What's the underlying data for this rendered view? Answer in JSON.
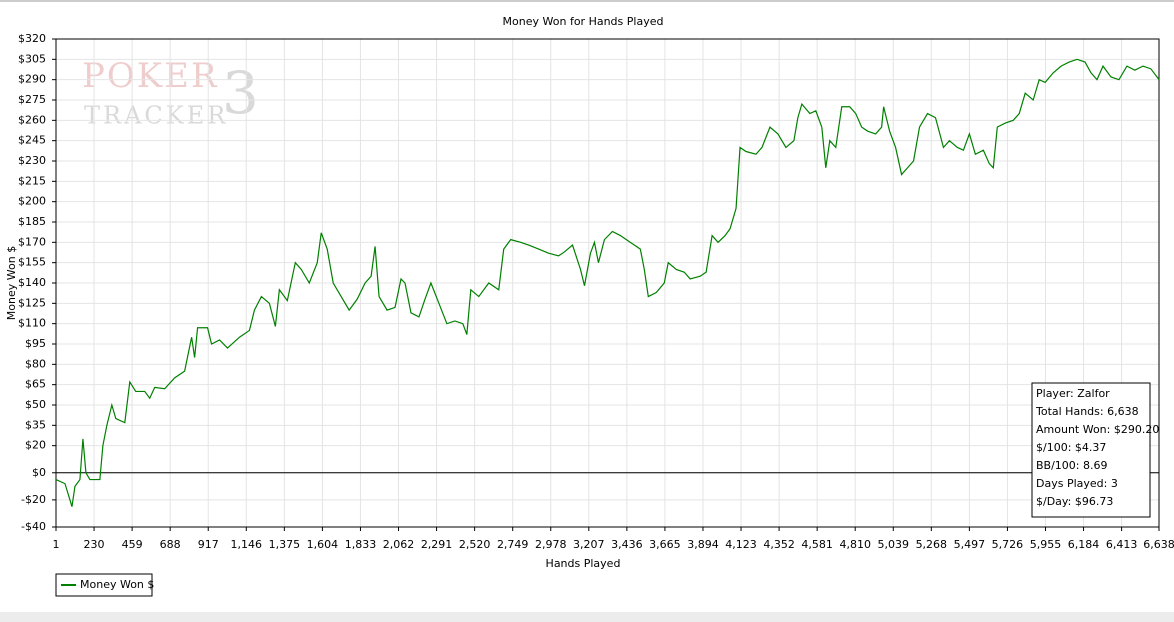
{
  "chart_data": {
    "type": "line",
    "title": "Money Won for Hands Played",
    "x_label": "Hands Played",
    "y_label": "Money Won $",
    "watermark": [
      "POKER",
      "TRACKER",
      "3"
    ],
    "x": [
      1,
      55,
      85,
      97,
      115,
      145,
      163,
      181,
      205,
      265,
      283,
      307,
      337,
      361,
      415,
      445,
      481,
      535,
      565,
      595,
      655,
      715,
      775,
      817,
      835,
      853,
      913,
      937,
      985,
      1033,
      1105,
      1165,
      1195,
      1237,
      1285,
      1321,
      1345,
      1393,
      1441,
      1477,
      1525,
      1573,
      1597,
      1633,
      1669,
      1717,
      1765,
      1813,
      1861,
      1897,
      1921,
      1945,
      1993,
      2041,
      2077,
      2101,
      2137,
      2185,
      2221,
      2257,
      2305,
      2353,
      2401,
      2449,
      2473,
      2497,
      2545,
      2605,
      2665,
      2695,
      2737,
      2797,
      2845,
      2905,
      2965,
      3025,
      3061,
      3109,
      3157,
      3181,
      3217,
      3241,
      3265,
      3301,
      3349,
      3397,
      3457,
      3517,
      3541,
      3565,
      3613,
      3661,
      3685,
      3733,
      3781,
      3817,
      3877,
      3913,
      3949,
      3985,
      4027,
      4057,
      4093,
      4117,
      4153,
      4213,
      4249,
      4297,
      4345,
      4393,
      4441,
      4465,
      4489,
      4537,
      4573,
      4609,
      4633,
      4657,
      4693,
      4729,
      4777,
      4813,
      4849,
      4885,
      4933,
      4969,
      4981,
      5017,
      5053,
      5089,
      5125,
      5161,
      5197,
      5245,
      5293,
      5341,
      5377,
      5425,
      5461,
      5497,
      5533,
      5581,
      5617,
      5641,
      5665,
      5713,
      5761,
      5797,
      5833,
      5881,
      5917,
      5953,
      6001,
      6049,
      6097,
      6145,
      6193,
      6229,
      6265,
      6301,
      6349,
      6397,
      6445,
      6493,
      6541,
      6589,
      6638
    ],
    "series": [
      {
        "name": "Money Won $",
        "color": "#008000",
        "values": [
          -5,
          -8,
          -20,
          -25,
          -10,
          -5,
          25,
          0,
          -5,
          -5,
          20,
          35,
          50,
          40,
          37,
          67,
          60,
          60,
          55,
          63,
          62,
          70,
          75,
          100,
          85,
          107,
          107,
          95,
          98,
          92,
          100,
          105,
          120,
          130,
          125,
          108,
          135,
          127,
          155,
          150,
          140,
          155,
          177,
          165,
          140,
          130,
          120,
          128,
          140,
          145,
          167,
          130,
          120,
          122,
          143,
          140,
          118,
          115,
          128,
          140,
          125,
          110,
          112,
          110,
          102,
          135,
          130,
          140,
          135,
          165,
          172,
          170,
          168,
          165,
          162,
          160,
          163,
          168,
          150,
          138,
          162,
          170,
          155,
          172,
          178,
          175,
          170,
          165,
          150,
          130,
          133,
          140,
          155,
          150,
          148,
          143,
          145,
          148,
          175,
          170,
          175,
          180,
          195,
          240,
          237,
          235,
          240,
          255,
          250,
          240,
          245,
          262,
          272,
          265,
          267,
          255,
          225,
          245,
          240,
          270,
          270,
          265,
          255,
          252,
          250,
          255,
          270,
          252,
          240,
          220,
          225,
          230,
          255,
          265,
          262,
          240,
          245,
          240,
          238,
          250,
          235,
          238,
          228,
          225,
          255,
          258,
          260,
          265,
          280,
          275,
          290,
          288,
          295,
          300,
          303,
          305,
          303,
          295,
          290,
          300,
          292,
          290,
          300,
          297,
          300,
          298,
          290
        ]
      }
    ],
    "xlim": [
      1,
      6638
    ],
    "xticks": [
      1,
      {
        "value": 230,
        "label": "230"
      },
      {
        "value": 459,
        "label": "459"
      },
      {
        "value": 688,
        "label": "688"
      },
      {
        "value": 917,
        "label": "917"
      },
      {
        "value": 1146,
        "label": "1,146"
      },
      {
        "value": 1375,
        "label": "1,375"
      },
      {
        "value": 1604,
        "label": "1,604"
      },
      {
        "value": 1833,
        "label": "1,833"
      },
      {
        "value": 2062,
        "label": "2,062"
      },
      {
        "value": 2291,
        "label": "2,291"
      },
      {
        "value": 2520,
        "label": "2,520"
      },
      {
        "value": 2749,
        "label": "2,749"
      },
      {
        "value": 2978,
        "label": "2,978"
      },
      {
        "value": 3207,
        "label": "3,207"
      },
      {
        "value": 3436,
        "label": "3,436"
      },
      {
        "value": 3665,
        "label": "3,665"
      },
      {
        "value": 3894,
        "label": "3,894"
      },
      {
        "value": 4123,
        "label": "4,123"
      },
      {
        "value": 4352,
        "label": "4,352"
      },
      {
        "value": 4581,
        "label": "4,581"
      },
      {
        "value": 4810,
        "label": "4,810"
      },
      {
        "value": 5039,
        "label": "5,039"
      },
      {
        "value": 5268,
        "label": "5,268"
      },
      {
        "value": 5497,
        "label": "5,497"
      },
      {
        "value": 5726,
        "label": "5,726"
      },
      {
        "value": 5955,
        "label": "5,955"
      },
      {
        "value": 6184,
        "label": "6,184"
      },
      {
        "value": 6413,
        "label": "6,413"
      },
      {
        "value": 6638,
        "label": "6,638"
      }
    ],
    "ylim": [
      -40,
      320
    ],
    "yticks": [
      {
        "value": -40,
        "label": "-$40"
      },
      {
        "value": -20,
        "label": "-$20"
      },
      {
        "value": 0,
        "label": "$0"
      },
      {
        "value": 20,
        "label": "$20"
      },
      {
        "value": 35,
        "label": "$35"
      },
      {
        "value": 50,
        "label": "$50"
      },
      {
        "value": 65,
        "label": "$65"
      },
      {
        "value": 80,
        "label": "$80"
      },
      {
        "value": 95,
        "label": "$95"
      },
      {
        "value": 110,
        "label": "$110"
      },
      {
        "value": 125,
        "label": "$125"
      },
      {
        "value": 140,
        "label": "$140"
      },
      {
        "value": 155,
        "label": "$155"
      },
      {
        "value": 170,
        "label": "$170"
      },
      {
        "value": 185,
        "label": "$185"
      },
      {
        "value": 200,
        "label": "$200"
      },
      {
        "value": 215,
        "label": "$215"
      },
      {
        "value": 230,
        "label": "$230"
      },
      {
        "value": 245,
        "label": "$245"
      },
      {
        "value": 260,
        "label": "$260"
      },
      {
        "value": 275,
        "label": "$275"
      },
      {
        "value": 290,
        "label": "$290"
      },
      {
        "value": 305,
        "label": "$305"
      },
      {
        "value": 320,
        "label": "$320"
      }
    ],
    "grid": true,
    "legend": "bottom-left",
    "stats": [
      "Player: Zalfor",
      "Total Hands: 6,638",
      "Amount Won: $290.20",
      "$/100: $4.37",
      "BB/100: 8.69",
      "Days Played: 3",
      "$/Day: $96.73"
    ]
  }
}
